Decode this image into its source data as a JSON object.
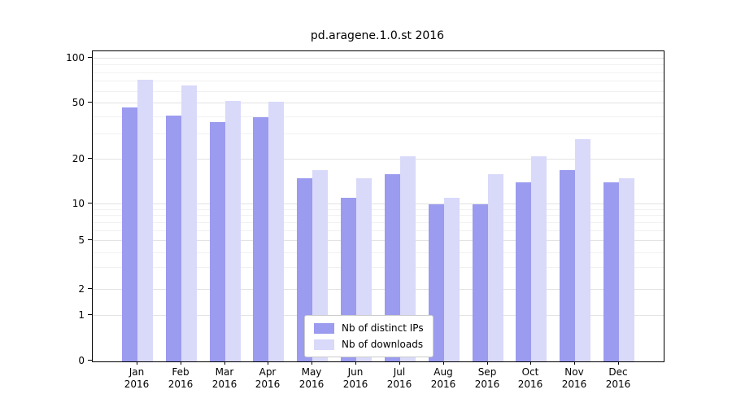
{
  "chart_data": {
    "type": "bar",
    "title": "pd.aragene.1.0.st 2016",
    "categories": [
      "Jan",
      "Feb",
      "Mar",
      "Apr",
      "May",
      "Jun",
      "Jul",
      "Aug",
      "Sep",
      "Oct",
      "Nov",
      "Dec"
    ],
    "year": "2016",
    "series": [
      {
        "name": "Nb of distinct IPs",
        "color": "#9b9bf0",
        "values": [
          47,
          41,
          37,
          40,
          15,
          11,
          16,
          10,
          10,
          14,
          17,
          14
        ]
      },
      {
        "name": "Nb of downloads",
        "color": "#d9d9fa",
        "values": [
          72,
          66,
          52,
          51,
          17,
          15,
          21,
          11,
          16,
          21,
          28,
          15
        ]
      }
    ],
    "yticks": [
      0,
      1,
      2,
      5,
      10,
      20,
      50,
      100
    ],
    "yscale": "symlog",
    "ylim": [
      0,
      110
    ],
    "grid": true,
    "legend_position": "bottom-center"
  }
}
